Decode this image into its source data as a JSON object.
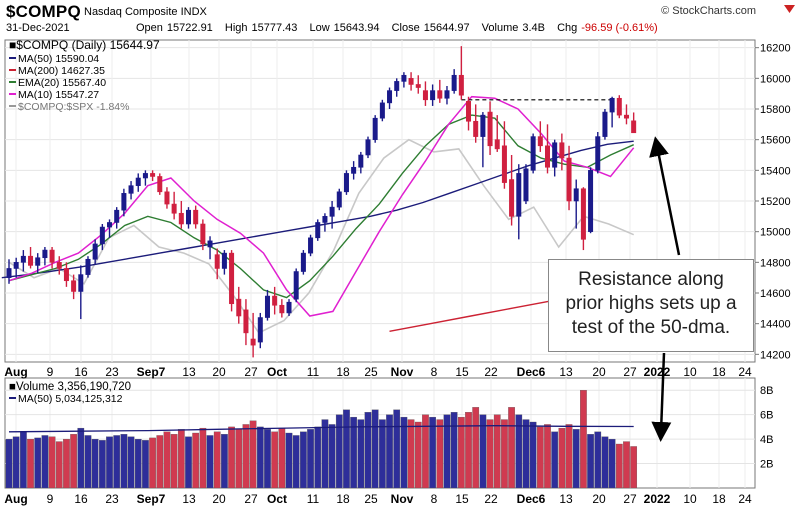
{
  "header": {
    "symbol": "$COMPQ",
    "index_name": "Nasdaq Composite INDX",
    "brand": "© StockCharts.com",
    "date": "31-Dec-2021",
    "open_label": "Open",
    "open": "15722.91",
    "high_label": "High",
    "high": "15777.43",
    "low_label": "Low",
    "low": "15643.94",
    "close_label": "Close",
    "close": "15644.97",
    "volume_label": "Volume",
    "volume": "3.4B",
    "chg_label": "Chg",
    "chg": "-96.59 (-0.61%)",
    "chg_color": "#cc0000"
  },
  "annotation": {
    "line1": "Resistance along",
    "line2": "prior highs sets up a",
    "line3": "test of the 50-dma."
  },
  "chart_data": [
    {
      "type": "candlestick",
      "title": "$COMPQ (Daily) 15644.97",
      "legend": [
        {
          "label": "MA(50) 15590.04",
          "color": "#1c1c7a"
        },
        {
          "label": "MA(200) 14627.35",
          "color": "#cc2233"
        },
        {
          "label": "EMA(20) 15567.40",
          "color": "#2e7d32"
        },
        {
          "label": "MA(10) 15547.27",
          "color": "#e020d0"
        },
        {
          "label": "$COMPQ:$SPX -1.84%",
          "color": "#999999"
        }
      ],
      "ylim": [
        14150,
        16250
      ],
      "y_ticks": [
        14200,
        14400,
        14600,
        14800,
        15000,
        15200,
        15400,
        15600,
        15800,
        16000,
        16200
      ],
      "x_ticks": [
        "Aug",
        "9",
        "16",
        "23",
        "Sep7",
        "13",
        "20",
        "27",
        "Oct",
        "11",
        "18",
        "25",
        "Nov",
        "8",
        "15",
        "22",
        "Dec6",
        "13",
        "20",
        "27",
        "2022",
        "10",
        "18",
        "24"
      ],
      "candles": [
        {
          "o": 14700,
          "h": 14820,
          "l": 14660,
          "c": 14760
        },
        {
          "o": 14760,
          "h": 14830,
          "l": 14700,
          "c": 14800
        },
        {
          "o": 14800,
          "h": 14880,
          "l": 14740,
          "c": 14840
        },
        {
          "o": 14840,
          "h": 14900,
          "l": 14760,
          "c": 14780
        },
        {
          "o": 14780,
          "h": 14860,
          "l": 14730,
          "c": 14830
        },
        {
          "o": 14830,
          "h": 14900,
          "l": 14780,
          "c": 14880
        },
        {
          "o": 14880,
          "h": 14900,
          "l": 14760,
          "c": 14800
        },
        {
          "o": 14800,
          "h": 14840,
          "l": 14720,
          "c": 14760
        },
        {
          "o": 14760,
          "h": 14800,
          "l": 14640,
          "c": 14680
        },
        {
          "o": 14680,
          "h": 14720,
          "l": 14560,
          "c": 14610
        },
        {
          "o": 14610,
          "h": 14780,
          "l": 14430,
          "c": 14720
        },
        {
          "o": 14720,
          "h": 14840,
          "l": 14700,
          "c": 14820
        },
        {
          "o": 14820,
          "h": 14950,
          "l": 14790,
          "c": 14920
        },
        {
          "o": 14920,
          "h": 15050,
          "l": 14880,
          "c": 15030
        },
        {
          "o": 15030,
          "h": 15080,
          "l": 14960,
          "c": 15060
        },
        {
          "o": 15060,
          "h": 15160,
          "l": 15020,
          "c": 15140
        },
        {
          "o": 15140,
          "h": 15280,
          "l": 15100,
          "c": 15250
        },
        {
          "o": 15250,
          "h": 15330,
          "l": 15210,
          "c": 15300
        },
        {
          "o": 15300,
          "h": 15380,
          "l": 15260,
          "c": 15350
        },
        {
          "o": 15350,
          "h": 15400,
          "l": 15300,
          "c": 15380
        },
        {
          "o": 15380,
          "h": 15400,
          "l": 15330,
          "c": 15360
        },
        {
          "o": 15360,
          "h": 15380,
          "l": 15240,
          "c": 15260
        },
        {
          "o": 15260,
          "h": 15290,
          "l": 15150,
          "c": 15180
        },
        {
          "o": 15180,
          "h": 15260,
          "l": 15080,
          "c": 15120
        },
        {
          "o": 15120,
          "h": 15200,
          "l": 15020,
          "c": 15050
        },
        {
          "o": 15050,
          "h": 15160,
          "l": 15020,
          "c": 15140
        },
        {
          "o": 15140,
          "h": 15170,
          "l": 15020,
          "c": 15050
        },
        {
          "o": 15050,
          "h": 15080,
          "l": 14880,
          "c": 14920
        },
        {
          "o": 14900,
          "h": 14970,
          "l": 14820,
          "c": 14940
        },
        {
          "o": 14850,
          "h": 14890,
          "l": 14690,
          "c": 14760
        },
        {
          "o": 14760,
          "h": 14880,
          "l": 14720,
          "c": 14860
        },
        {
          "o": 14860,
          "h": 14880,
          "l": 14480,
          "c": 14530
        },
        {
          "o": 14560,
          "h": 14640,
          "l": 14400,
          "c": 14450
        },
        {
          "o": 14490,
          "h": 14560,
          "l": 14260,
          "c": 14340
        },
        {
          "o": 14300,
          "h": 14470,
          "l": 14180,
          "c": 14260
        },
        {
          "o": 14280,
          "h": 14470,
          "l": 14240,
          "c": 14440
        },
        {
          "o": 14440,
          "h": 14620,
          "l": 14420,
          "c": 14580
        },
        {
          "o": 14580,
          "h": 14640,
          "l": 14460,
          "c": 14520
        },
        {
          "o": 14520,
          "h": 14560,
          "l": 14440,
          "c": 14470
        },
        {
          "o": 14470,
          "h": 14560,
          "l": 14450,
          "c": 14540
        },
        {
          "o": 14560,
          "h": 14760,
          "l": 14540,
          "c": 14740
        },
        {
          "o": 14740,
          "h": 14880,
          "l": 14720,
          "c": 14860
        },
        {
          "o": 14860,
          "h": 14980,
          "l": 14840,
          "c": 14960
        },
        {
          "o": 14960,
          "h": 15080,
          "l": 14940,
          "c": 15060
        },
        {
          "o": 15060,
          "h": 15120,
          "l": 15000,
          "c": 15100
        },
        {
          "o": 15100,
          "h": 15200,
          "l": 15020,
          "c": 15160
        },
        {
          "o": 15160,
          "h": 15280,
          "l": 15140,
          "c": 15260
        },
        {
          "o": 15260,
          "h": 15400,
          "l": 15240,
          "c": 15380
        },
        {
          "o": 15380,
          "h": 15460,
          "l": 15340,
          "c": 15420
        },
        {
          "o": 15420,
          "h": 15520,
          "l": 15380,
          "c": 15500
        },
        {
          "o": 15500,
          "h": 15620,
          "l": 15480,
          "c": 15600
        },
        {
          "o": 15600,
          "h": 15760,
          "l": 15580,
          "c": 15740
        },
        {
          "o": 15740,
          "h": 15860,
          "l": 15720,
          "c": 15840
        },
        {
          "o": 15840,
          "h": 15940,
          "l": 15800,
          "c": 15920
        },
        {
          "o": 15920,
          "h": 16000,
          "l": 15880,
          "c": 15980
        },
        {
          "o": 15980,
          "h": 16040,
          "l": 15940,
          "c": 16020
        },
        {
          "o": 16000,
          "h": 16040,
          "l": 15920,
          "c": 15960
        },
        {
          "o": 15960,
          "h": 16020,
          "l": 15900,
          "c": 15940
        },
        {
          "o": 15920,
          "h": 15980,
          "l": 15820,
          "c": 15860
        },
        {
          "o": 15860,
          "h": 15960,
          "l": 15820,
          "c": 15920
        },
        {
          "o": 15920,
          "h": 15990,
          "l": 15840,
          "c": 15870
        },
        {
          "o": 15870,
          "h": 15950,
          "l": 15830,
          "c": 15920
        },
        {
          "o": 15920,
          "h": 16060,
          "l": 15900,
          "c": 16020
        },
        {
          "o": 16020,
          "h": 16210,
          "l": 15860,
          "c": 15890
        },
        {
          "o": 15850,
          "h": 15880,
          "l": 15660,
          "c": 15720
        },
        {
          "o": 15720,
          "h": 15830,
          "l": 15580,
          "c": 15620
        },
        {
          "o": 15620,
          "h": 15780,
          "l": 15420,
          "c": 15760
        },
        {
          "o": 15780,
          "h": 15850,
          "l": 15500,
          "c": 15560
        },
        {
          "o": 15600,
          "h": 15760,
          "l": 15520,
          "c": 15540
        },
        {
          "o": 15560,
          "h": 15720,
          "l": 15280,
          "c": 15320
        },
        {
          "o": 15340,
          "h": 15500,
          "l": 15040,
          "c": 15100
        },
        {
          "o": 15100,
          "h": 15440,
          "l": 14950,
          "c": 15380
        },
        {
          "o": 15200,
          "h": 15440,
          "l": 15180,
          "c": 15410
        },
        {
          "o": 15400,
          "h": 15640,
          "l": 15380,
          "c": 15620
        },
        {
          "o": 15620,
          "h": 15720,
          "l": 15520,
          "c": 15560
        },
        {
          "o": 15560,
          "h": 15700,
          "l": 15380,
          "c": 15420
        },
        {
          "o": 15420,
          "h": 15600,
          "l": 15360,
          "c": 15580
        },
        {
          "o": 15580,
          "h": 15640,
          "l": 15400,
          "c": 15480
        },
        {
          "o": 15480,
          "h": 15560,
          "l": 15140,
          "c": 15200
        },
        {
          "o": 15200,
          "h": 15340,
          "l": 15020,
          "c": 15280
        },
        {
          "o": 15280,
          "h": 15290,
          "l": 14880,
          "c": 14950
        },
        {
          "o": 15000,
          "h": 15420,
          "l": 14990,
          "c": 15400
        },
        {
          "o": 15400,
          "h": 15650,
          "l": 15380,
          "c": 15620
        },
        {
          "o": 15620,
          "h": 15800,
          "l": 15600,
          "c": 15780
        },
        {
          "o": 15780,
          "h": 15880,
          "l": 15680,
          "c": 15870
        },
        {
          "o": 15870,
          "h": 15890,
          "l": 15740,
          "c": 15760
        },
        {
          "o": 15760,
          "h": 15830,
          "l": 15700,
          "c": 15740
        },
        {
          "o": 15722.91,
          "h": 15777.43,
          "l": 15643.94,
          "c": 15644.97
        }
      ],
      "ma50": [
        14700,
        14720,
        14745,
        14770,
        14800,
        14830,
        14860,
        14890,
        14920,
        14950,
        14980,
        15010,
        15040,
        15070,
        15100,
        15140,
        15190,
        15250,
        15310,
        15370,
        15430,
        15480,
        15530,
        15570,
        15590
      ],
      "ma200": [
        14350,
        14400,
        14450,
        14500,
        14550,
        14600,
        14627.35
      ],
      "ema20": [
        14680,
        14720,
        14760,
        14820,
        14920,
        15040,
        15100,
        15060,
        14960,
        14880,
        14760,
        14620,
        14570,
        14680,
        14840,
        15020,
        15180,
        15380,
        15560,
        15700,
        15760,
        15740,
        15560,
        15480,
        15440,
        15420,
        15500,
        15567.4
      ],
      "ma10": [
        14680,
        14730,
        14800,
        14860,
        14980,
        15120,
        15300,
        15350,
        15200,
        15080,
        14990,
        14860,
        14620,
        14450,
        14480,
        14740,
        15000,
        15240,
        15460,
        15700,
        15880,
        15870,
        15800,
        15640,
        15460,
        15420,
        15360,
        15547.27
      ],
      "ratio_line": [
        14800,
        14700,
        14760,
        14660,
        14960,
        15040,
        14900,
        14860,
        14790,
        14580,
        14340,
        14420,
        14600,
        14880,
        15250,
        15480,
        15600,
        15520,
        15540,
        15300,
        15080,
        15160,
        14900,
        15100,
        15050,
        14980
      ],
      "resistance_level": 15860
    },
    {
      "type": "bar",
      "title": "Volume 3,356,190,720",
      "legend": [
        {
          "label": "MA(50) 5,034,125,312",
          "color": "#1c1c7a"
        }
      ],
      "ylim": [
        0,
        9000000000
      ],
      "y_ticks": [
        "2B",
        "4B",
        "6B",
        "8B"
      ],
      "up_color": "#2e2e9a",
      "down_color": "#d03a50",
      "volume_b": [
        4.0,
        4.2,
        4.6,
        4.0,
        4.1,
        4.3,
        4.2,
        3.8,
        4.0,
        4.4,
        4.9,
        4.3,
        4.0,
        3.9,
        4.2,
        4.3,
        4.4,
        4.2,
        4.0,
        3.9,
        4.1,
        4.3,
        4.6,
        4.4,
        4.8,
        4.2,
        4.5,
        4.9,
        4.3,
        4.6,
        4.4,
        5.0,
        4.8,
        5.2,
        5.5,
        5.0,
        4.8,
        4.6,
        4.9,
        4.5,
        4.3,
        4.6,
        4.8,
        5.0,
        5.6,
        5.2,
        6.0,
        6.4,
        5.8,
        5.6,
        6.2,
        6.4,
        5.6,
        6.0,
        6.4,
        5.8,
        5.6,
        5.4,
        6.0,
        5.8,
        5.6,
        6.0,
        6.2,
        5.8,
        6.2,
        6.6,
        6.0,
        5.6,
        6.0,
        5.6,
        6.6,
        6.0,
        5.6,
        5.4,
        5.0,
        5.2,
        4.6,
        4.9,
        5.2,
        4.8,
        8.0,
        4.4,
        4.6,
        4.2,
        4.0,
        3.6,
        3.8,
        3.4
      ],
      "ma50_b": [
        4.6,
        4.65,
        4.7,
        4.8,
        4.9,
        5.0,
        5.05,
        5.1,
        5.05,
        5.03
      ]
    }
  ]
}
